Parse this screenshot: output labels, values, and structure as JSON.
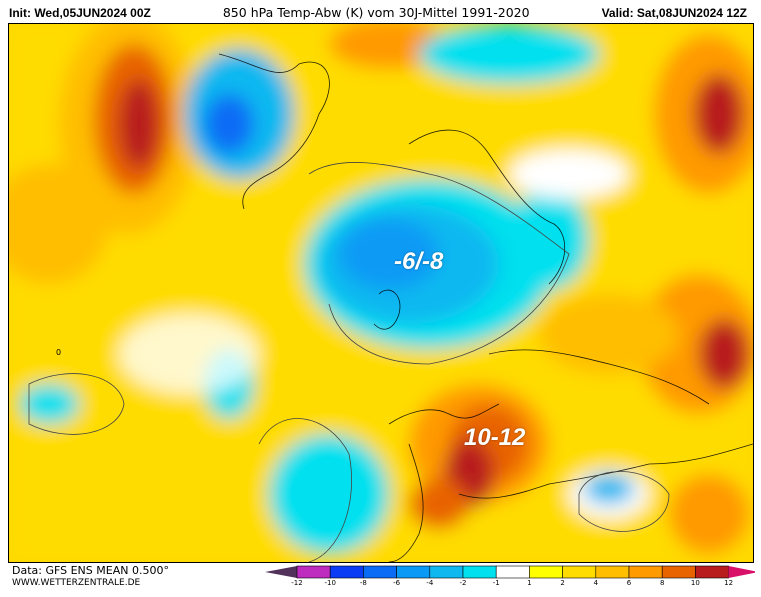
{
  "header": {
    "init": "Init: Wed,05JUN2024 00Z",
    "title": "850 hPa Temp-Abw (K) vom 30J-Mittel 1991-2020",
    "valid": "Valid: Sat,08JUN2024 12Z"
  },
  "map": {
    "annotations": {
      "cold": "-6/-8",
      "warm": "10-12"
    },
    "contour_label": "0"
  },
  "footer": {
    "data_source": "Data: GFS ENS MEAN 0.500°",
    "website": "WWW.WETTERZENTRALE.DE"
  },
  "legend": {
    "ticks": [
      "-12",
      "-10",
      "-8",
      "-6",
      "-4",
      "-2",
      "-1",
      "1",
      "2",
      "4",
      "6",
      "8",
      "10",
      "12"
    ],
    "colors": [
      "#bd2cbf",
      "#0a3cf5",
      "#0a6cf5",
      "#0a9af5",
      "#10b8f0",
      "#00e0ee",
      "#ffffff",
      "#ffff00",
      "#ffdc00",
      "#ffbe00",
      "#ff9a00",
      "#e86400",
      "#b81c1c"
    ],
    "under_color": "#52325a",
    "over_color": "#d8106a"
  }
}
